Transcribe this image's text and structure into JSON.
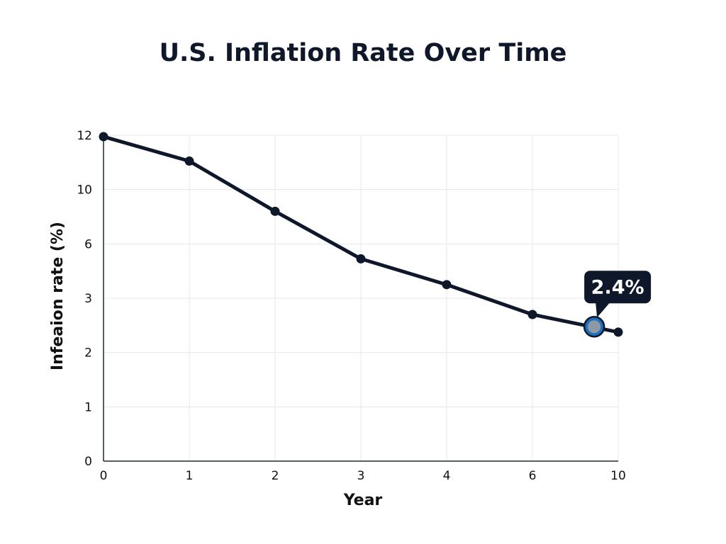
{
  "chart_data": {
    "type": "line",
    "title": "U.S. Inflation Rate Over Time",
    "xlabel": "Year",
    "ylabel": "Infeaion rate (%)",
    "x_ticks": [
      "0",
      "1",
      "2",
      "3",
      "4",
      "6",
      "10"
    ],
    "y_ticks": [
      "0",
      "1",
      "2",
      "3",
      "6",
      "10",
      "12"
    ],
    "series": [
      {
        "x": [
          0,
          1,
          2,
          3,
          4,
          5,
          6
        ],
        "values": [
          11.95,
          11.05,
          9.2,
          7.45,
          6.5,
          5.4,
          4.75
        ],
        "color": "#0f172a"
      }
    ],
    "highlight": {
      "x": 5.72,
      "y": 4.95,
      "label": "2.4%",
      "color": "#1d6fbf"
    },
    "xlim": [
      0,
      6
    ],
    "ylim": [
      0,
      12
    ],
    "grid": true,
    "legend": "none"
  }
}
